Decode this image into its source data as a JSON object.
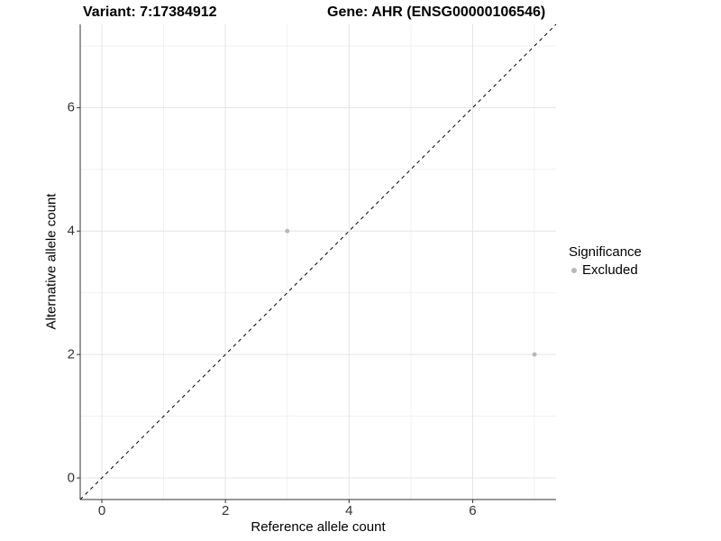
{
  "titles": {
    "variant": "Variant: 7:17384912",
    "gene": "Gene: AHR (ENSG00000106546)"
  },
  "chart_data": {
    "type": "scatter",
    "title_left": "Variant: 7:17384912",
    "title_right": "Gene: AHR (ENSG00000106546)",
    "xlabel": "Reference allele count",
    "ylabel": "Alternative allele count",
    "xlim": [
      -0.35,
      7.35
    ],
    "ylim": [
      -0.35,
      7.35
    ],
    "x_major_ticks": [
      0,
      2,
      4,
      6
    ],
    "y_major_ticks": [
      0,
      2,
      4,
      6
    ],
    "x_minor_ticks": [
      1,
      3,
      5,
      7
    ],
    "y_minor_ticks": [
      1,
      3,
      5,
      7
    ],
    "grid": true,
    "legend_position": "right",
    "reference_line": {
      "type": "identity",
      "style": "dashed",
      "dash": "4,4"
    },
    "series": [
      {
        "name": "Excluded",
        "marker": "circle",
        "marker_radius": 2.5,
        "color": "#b8b8b8",
        "points": [
          {
            "x": 3,
            "y": 4
          },
          {
            "x": 7,
            "y": 2
          }
        ]
      }
    ],
    "legend": {
      "title": "Significance",
      "entries": [
        {
          "label": "Excluded",
          "color": "#b8b8b8"
        }
      ]
    },
    "colors": {
      "background": "#ffffff",
      "grid_major": "#e4e4e4",
      "grid_minor": "#f1f1f1",
      "axis_line": "#333333",
      "tick_mark": "#333333",
      "tick_text": "#333333",
      "reference_line": "#000000"
    }
  }
}
